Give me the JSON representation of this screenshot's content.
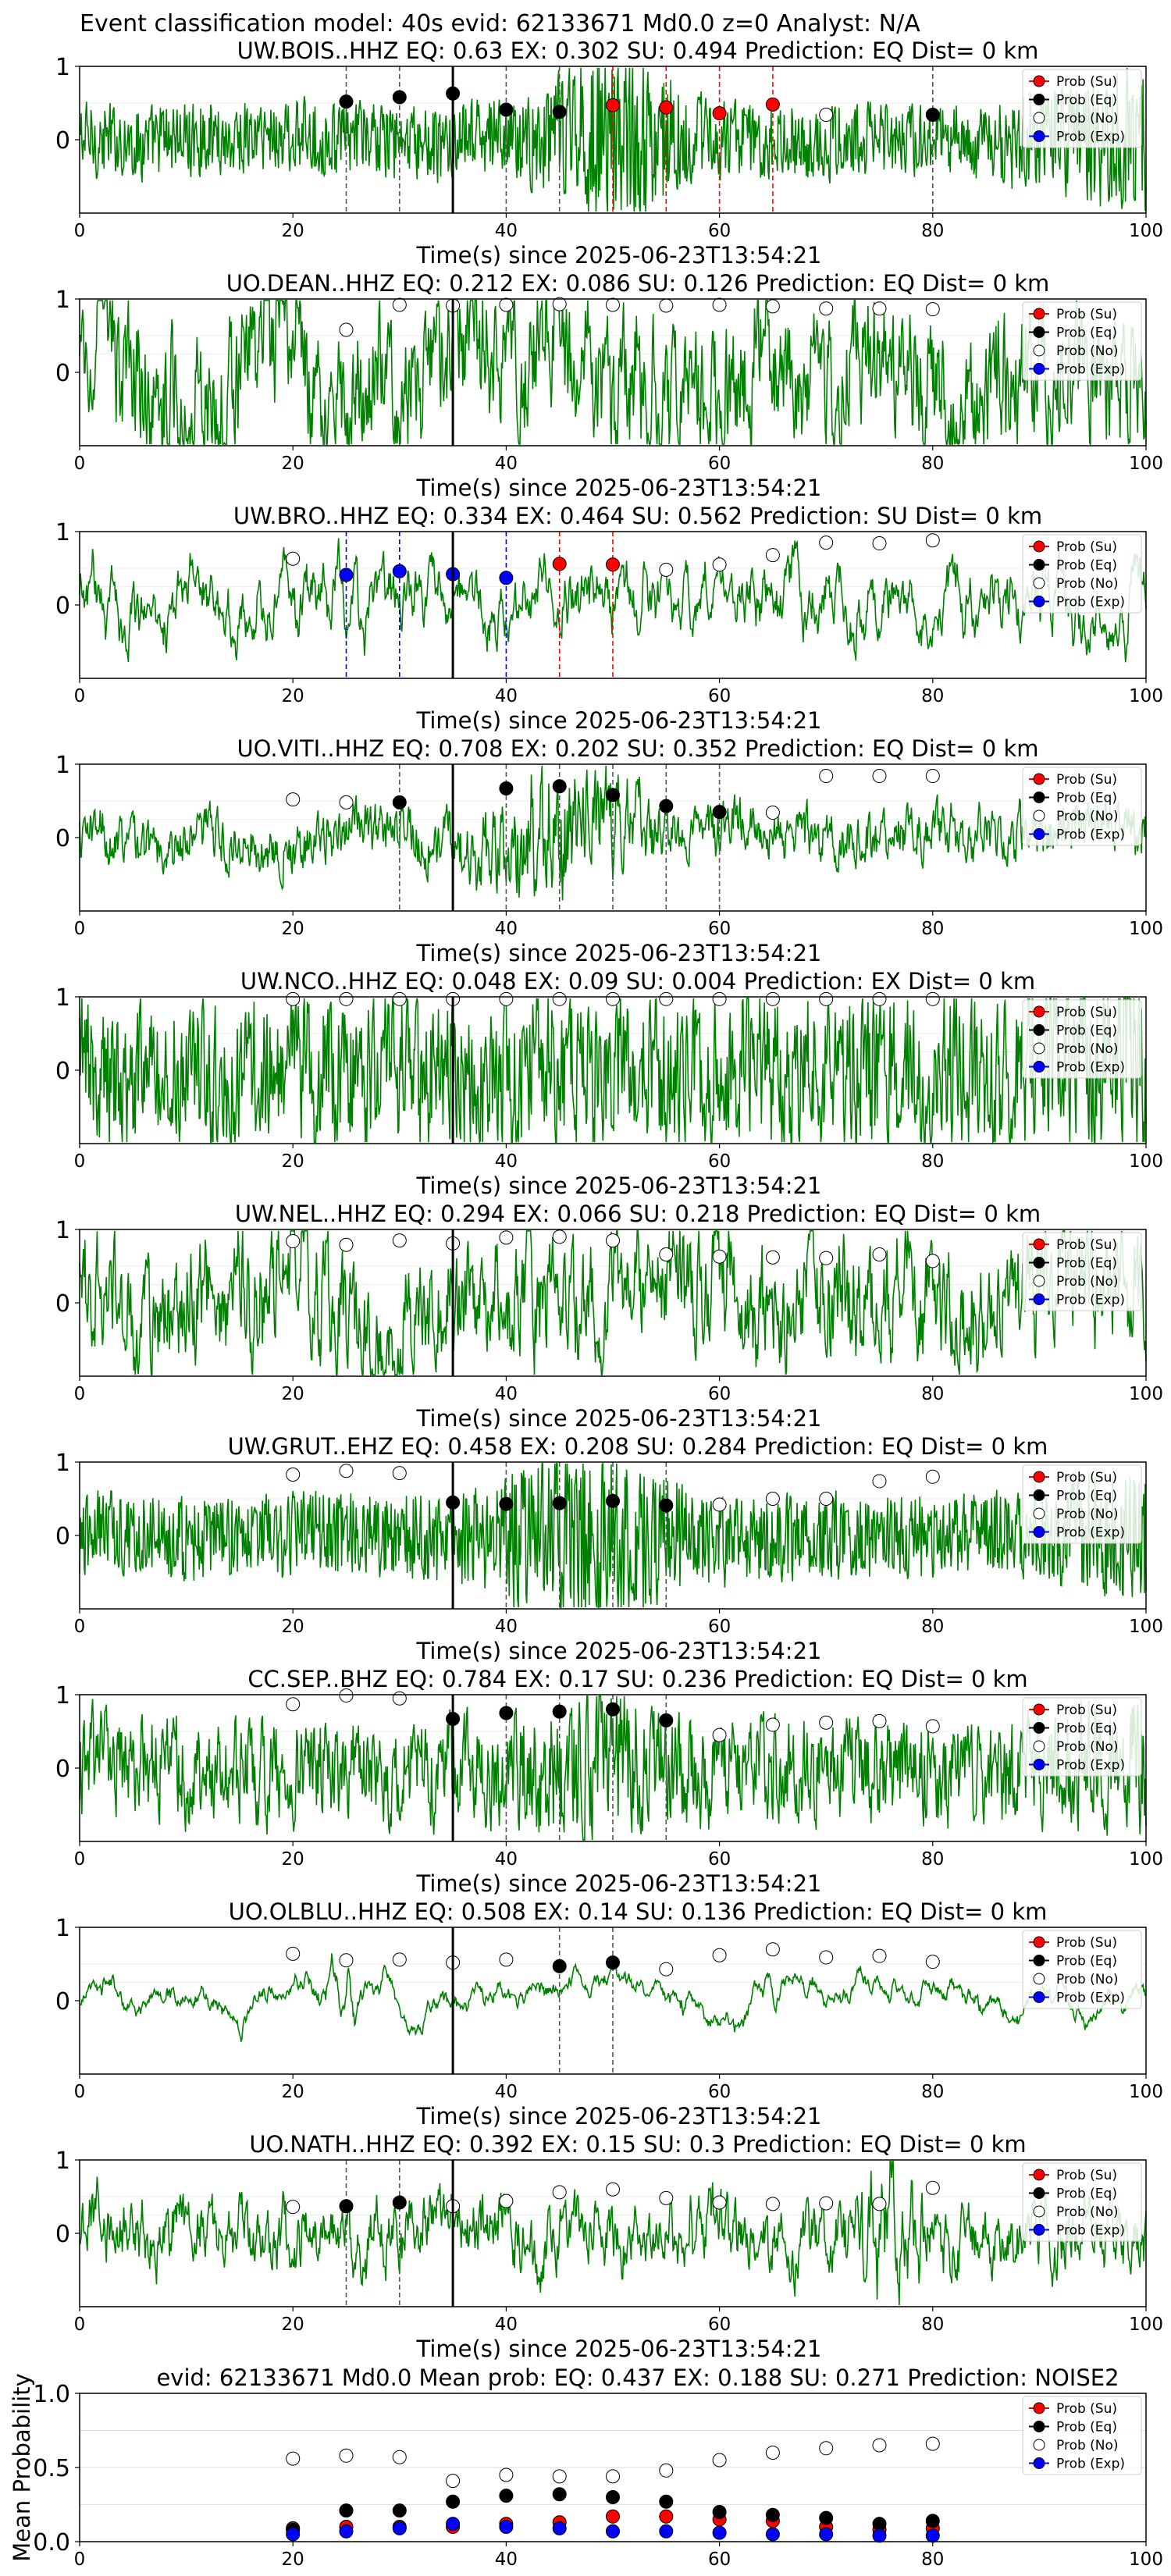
{
  "figure": {
    "suptitle": "Event classification model: 40s evid: 62133671 Md0.0 z=0 Analyst: N/A",
    "xlabel": "Time(s) since 2025-06-23T13:54:21",
    "legend": [
      "Prob (Su)",
      "Prob (Eq)",
      "Prob (No)",
      "Prob (Exp)"
    ],
    "colors": {
      "trace": "#008000",
      "su": "#ff0000",
      "eq": "#000000",
      "no": "#ffffff",
      "exp": "#0000ff",
      "su_line": "#ff0000",
      "eq_line": "#555555",
      "exp_line": "#0000ff",
      "pick_line": "#000000",
      "grid": "#dddddd"
    }
  },
  "chart_data": [
    {
      "type": "line",
      "station": "UW.BOIS..HHZ",
      "title": "UW.BOIS..HHZ   EQ: 0.63  EX: 0.302  SU: 0.494   Prediction: EQ    Dist= 0 km",
      "xlim": [
        0,
        100
      ],
      "ylim": [
        -1,
        1
      ],
      "xticks": [
        "0",
        "20",
        "40",
        "60",
        "80",
        "100"
      ],
      "yticks": [
        "1",
        "0"
      ],
      "pick_time": 35,
      "trace": {
        "amplitude": 0.22,
        "smoothness": 0.15,
        "burst_center": 50,
        "burst_amp": 0.35,
        "burst_width": 6,
        "late_amp": 0.25
      },
      "prob_su": {
        "x": [
          50,
          55,
          60,
          65
        ],
        "y": [
          0.47,
          0.44,
          0.36,
          0.48
        ]
      },
      "prob_eq": {
        "x": [
          25,
          30,
          35,
          40,
          45,
          80
        ],
        "y": [
          0.52,
          0.58,
          0.63,
          0.41,
          0.38,
          0.34
        ]
      },
      "prob_no": {
        "x": [
          70
        ],
        "y": [
          0.34
        ]
      },
      "prob_exp": {
        "x": [],
        "y": []
      }
    },
    {
      "type": "line",
      "station": "UO.DEAN..HHZ",
      "title": "UO.DEAN..HHZ   EQ: 0.212  EX: 0.086  SU: 0.126   Prediction: EQ    Dist= 0 km",
      "xlim": [
        0,
        100
      ],
      "ylim": [
        -1,
        1
      ],
      "xticks": [
        "0",
        "20",
        "40",
        "60",
        "80",
        "100"
      ],
      "yticks": [
        "1",
        "0"
      ],
      "pick_time": 35,
      "trace": {
        "amplitude": 0.62,
        "smoothness": 0.55,
        "burst_center": 50,
        "burst_amp": 0,
        "burst_width": 5,
        "late_amp": 0
      },
      "prob_su": {
        "x": [],
        "y": []
      },
      "prob_eq": {
        "x": [],
        "y": []
      },
      "prob_no": {
        "x": [
          25,
          30,
          35,
          40,
          45,
          50,
          55,
          60,
          65,
          70,
          75,
          80
        ],
        "y": [
          0.58,
          0.92,
          0.91,
          0.92,
          0.93,
          0.92,
          0.91,
          0.92,
          0.9,
          0.87,
          0.87,
          0.86
        ]
      },
      "prob_exp": {
        "x": [],
        "y": []
      }
    },
    {
      "type": "line",
      "station": "UW.BRO..HHZ",
      "title": "UW.BRO..HHZ   EQ: 0.334  EX: 0.464  SU: 0.562   Prediction: SU    Dist= 0 km",
      "xlim": [
        0,
        100
      ],
      "ylim": [
        -1,
        1
      ],
      "xticks": [
        "0",
        "20",
        "40",
        "60",
        "80",
        "100"
      ],
      "yticks": [
        "1",
        "0"
      ],
      "pick_time": 35,
      "trace": {
        "amplitude": 0.55,
        "smoothness": 0.82,
        "burst_center": 50,
        "burst_amp": 0,
        "burst_width": 5,
        "late_amp": 0
      },
      "prob_su": {
        "x": [
          45,
          50
        ],
        "y": [
          0.56,
          0.55
        ]
      },
      "prob_eq": {
        "x": [],
        "y": []
      },
      "prob_no": {
        "x": [
          20,
          55,
          60,
          65,
          70,
          75,
          80
        ],
        "y": [
          0.63,
          0.48,
          0.55,
          0.68,
          0.85,
          0.84,
          0.88
        ]
      },
      "prob_exp": {
        "x": [
          25,
          30,
          35,
          40
        ],
        "y": [
          0.41,
          0.46,
          0.42,
          0.37
        ]
      }
    },
    {
      "type": "line",
      "station": "UO.VITI..HHZ",
      "title": "UO.VITI..HHZ   EQ: 0.708  EX: 0.202  SU: 0.352   Prediction: EQ    Dist= 0 km",
      "xlim": [
        0,
        100
      ],
      "ylim": [
        -1,
        1
      ],
      "xticks": [
        "0",
        "20",
        "40",
        "60",
        "80",
        "100"
      ],
      "yticks": [
        "1",
        "0"
      ],
      "pick_time": 35,
      "trace": {
        "amplitude": 0.24,
        "smoothness": 0.55,
        "burst_center": 45,
        "burst_amp": 0.4,
        "burst_width": 6,
        "late_amp": 0
      },
      "prob_su": {
        "x": [],
        "y": []
      },
      "prob_eq": {
        "x": [
          30,
          40,
          45,
          50,
          55,
          60
        ],
        "y": [
          0.48,
          0.67,
          0.7,
          0.58,
          0.43,
          0.35
        ]
      },
      "prob_no": {
        "x": [
          20,
          25,
          65,
          70,
          75,
          80
        ],
        "y": [
          0.52,
          0.48,
          0.34,
          0.84,
          0.84,
          0.84
        ]
      },
      "prob_exp": {
        "x": [],
        "y": []
      }
    },
    {
      "type": "line",
      "station": "UW.NCO..HHZ",
      "title": "UW.NCO..HHZ   EQ: 0.048  EX: 0.09  SU: 0.004   Prediction: EX    Dist= 0 km",
      "xlim": [
        0,
        100
      ],
      "ylim": [
        -1,
        1
      ],
      "xticks": [
        "0",
        "20",
        "40",
        "60",
        "80",
        "100"
      ],
      "yticks": [
        "1",
        "0"
      ],
      "pick_time": 35,
      "trace": {
        "amplitude": 0.55,
        "smoothness": 0.35,
        "burst_center": 50,
        "burst_amp": 0,
        "burst_width": 5,
        "late_amp": 0.2
      },
      "prob_su": {
        "x": [],
        "y": []
      },
      "prob_eq": {
        "x": [],
        "y": []
      },
      "prob_no": {
        "x": [
          20,
          25,
          30,
          35,
          40,
          45,
          50,
          55,
          60,
          65,
          70,
          75,
          80
        ],
        "y": [
          0.97,
          0.97,
          0.97,
          0.97,
          0.97,
          0.97,
          0.97,
          0.97,
          0.97,
          0.97,
          0.97,
          0.97,
          0.97
        ]
      },
      "prob_exp": {
        "x": [],
        "y": []
      }
    },
    {
      "type": "line",
      "station": "UW.NEL..HHZ",
      "title": "UW.NEL..HHZ   EQ: 0.294  EX: 0.066  SU: 0.218   Prediction: EQ    Dist= 0 km",
      "xlim": [
        0,
        100
      ],
      "ylim": [
        -1,
        1
      ],
      "xticks": [
        "0",
        "20",
        "40",
        "60",
        "80",
        "100"
      ],
      "yticks": [
        "1",
        "0"
      ],
      "pick_time": 35,
      "trace": {
        "amplitude": 0.58,
        "smoothness": 0.6,
        "burst_center": 50,
        "burst_amp": 0,
        "burst_width": 5,
        "late_amp": 0
      },
      "prob_su": {
        "x": [],
        "y": []
      },
      "prob_eq": {
        "x": [],
        "y": []
      },
      "prob_no": {
        "x": [
          20,
          25,
          30,
          35,
          40,
          45,
          50,
          55,
          60,
          65,
          70,
          75,
          80
        ],
        "y": [
          0.84,
          0.79,
          0.85,
          0.81,
          0.89,
          0.9,
          0.85,
          0.66,
          0.63,
          0.62,
          0.61,
          0.66,
          0.57
        ]
      },
      "prob_exp": {
        "x": [],
        "y": []
      }
    },
    {
      "type": "line",
      "station": "UW.GRUT..EHZ",
      "title": "UW.GRUT..EHZ   EQ: 0.458  EX: 0.208  SU: 0.284   Prediction: EQ    Dist= 0 km",
      "xlim": [
        0,
        100
      ],
      "ylim": [
        -1,
        1
      ],
      "xticks": [
        "0",
        "20",
        "40",
        "60",
        "80",
        "100"
      ],
      "yticks": [
        "1",
        "0"
      ],
      "pick_time": 35,
      "trace": {
        "amplitude": 0.24,
        "smoothness": 0.1,
        "burst_center": 47,
        "burst_amp": 0.3,
        "burst_width": 8,
        "late_amp": 0.15
      },
      "prob_su": {
        "x": [],
        "y": []
      },
      "prob_eq": {
        "x": [
          35,
          40,
          45,
          50,
          55
        ],
        "y": [
          0.45,
          0.43,
          0.44,
          0.47,
          0.41
        ]
      },
      "prob_no": {
        "x": [
          20,
          25,
          30,
          60,
          65,
          70,
          75,
          80
        ],
        "y": [
          0.83,
          0.88,
          0.85,
          0.42,
          0.5,
          0.5,
          0.74,
          0.8
        ]
      },
      "prob_exp": {
        "x": [],
        "y": []
      }
    },
    {
      "type": "line",
      "station": "CC.SEP..BHZ",
      "title": "CC.SEP..BHZ   EQ: 0.784  EX: 0.17  SU: 0.236   Prediction: EQ    Dist= 0 km",
      "xlim": [
        0,
        100
      ],
      "ylim": [
        -1,
        1
      ],
      "xticks": [
        "0",
        "20",
        "40",
        "60",
        "80",
        "100"
      ],
      "yticks": [
        "1",
        "0"
      ],
      "pick_time": 35,
      "trace": {
        "amplitude": 0.4,
        "smoothness": 0.45,
        "burst_center": 48,
        "burst_amp": 0.3,
        "burst_width": 6,
        "late_amp": 0.15
      },
      "prob_su": {
        "x": [],
        "y": []
      },
      "prob_eq": {
        "x": [
          35,
          40,
          45,
          50,
          55
        ],
        "y": [
          0.67,
          0.75,
          0.77,
          0.8,
          0.65
        ]
      },
      "prob_no": {
        "x": [
          20,
          25,
          30,
          60,
          65,
          70,
          75,
          80
        ],
        "y": [
          0.87,
          0.99,
          0.95,
          0.45,
          0.59,
          0.62,
          0.64,
          0.57
        ]
      },
      "prob_exp": {
        "x": [],
        "y": []
      }
    },
    {
      "type": "line",
      "station": "UO.OLBLU..HHZ",
      "title": "UO.OLBLU..HHZ   EQ: 0.508  EX: 0.14  SU: 0.136   Prediction: EQ    Dist= 0 km",
      "xlim": [
        0,
        100
      ],
      "ylim": [
        -1,
        1
      ],
      "xticks": [
        "0",
        "20",
        "40",
        "60",
        "80",
        "100"
      ],
      "yticks": [
        "1",
        "0"
      ],
      "pick_time": 35,
      "trace": {
        "amplitude": 0.42,
        "smoothness": 0.96,
        "burst_center": 25,
        "burst_amp": 0.4,
        "burst_width": 3,
        "late_amp": 0
      },
      "prob_su": {
        "x": [],
        "y": []
      },
      "prob_eq": {
        "x": [
          45,
          50
        ],
        "y": [
          0.47,
          0.52
        ]
      },
      "prob_no": {
        "x": [
          20,
          25,
          30,
          35,
          40,
          55,
          60,
          65,
          70,
          75,
          80
        ],
        "y": [
          0.64,
          0.55,
          0.56,
          0.52,
          0.56,
          0.43,
          0.62,
          0.7,
          0.59,
          0.61,
          0.53
        ]
      },
      "prob_exp": {
        "x": [],
        "y": []
      }
    },
    {
      "type": "line",
      "station": "UO.NATH..HHZ",
      "title": "UO.NATH..HHZ   EQ: 0.392  EX: 0.15  SU: 0.3   Prediction: EQ    Dist= 0 km",
      "xlim": [
        0,
        100
      ],
      "ylim": [
        -1,
        1
      ],
      "xticks": [
        "0",
        "20",
        "40",
        "60",
        "80",
        "100"
      ],
      "yticks": [
        "1",
        "0"
      ],
      "pick_time": 35,
      "trace": {
        "amplitude": 0.4,
        "smoothness": 0.7,
        "burst_center": 76,
        "burst_amp": 0.45,
        "burst_width": 3,
        "late_amp": 0
      },
      "prob_su": {
        "x": [],
        "y": []
      },
      "prob_eq": {
        "x": [
          25,
          30
        ],
        "y": [
          0.37,
          0.42
        ]
      },
      "prob_no": {
        "x": [
          20,
          35,
          40,
          45,
          50,
          55,
          60,
          65,
          70,
          75,
          80
        ],
        "y": [
          0.36,
          0.37,
          0.44,
          0.56,
          0.6,
          0.48,
          0.42,
          0.4,
          0.41,
          0.4,
          0.62
        ]
      },
      "prob_exp": {
        "x": [],
        "y": []
      }
    },
    {
      "type": "scatter",
      "station": "mean",
      "title": "evid: 62133671  Md0.0   Mean prob:   EQ: 0.437  EX: 0.188  SU: 0.271   Prediction: NOISE2",
      "ylabel": "Mean Probability",
      "xlim": [
        0,
        100
      ],
      "ylim": [
        0,
        1
      ],
      "xticks": [
        "0",
        "20",
        "40",
        "60",
        "80",
        "100"
      ],
      "yticks": [
        "1.0",
        "0.5",
        "0.0"
      ],
      "prob_su": {
        "x": [
          20,
          25,
          30,
          35,
          40,
          45,
          50,
          55,
          60,
          65,
          70,
          75,
          80
        ],
        "y": [
          0.09,
          0.1,
          0.1,
          0.1,
          0.12,
          0.13,
          0.17,
          0.17,
          0.15,
          0.14,
          0.1,
          0.08,
          0.09
        ]
      },
      "prob_eq": {
        "x": [
          20,
          25,
          30,
          35,
          40,
          45,
          50,
          55,
          60,
          65,
          70,
          75,
          80
        ],
        "y": [
          0.08,
          0.21,
          0.21,
          0.27,
          0.31,
          0.32,
          0.3,
          0.27,
          0.2,
          0.18,
          0.16,
          0.12,
          0.14
        ]
      },
      "prob_no": {
        "x": [
          20,
          25,
          30,
          35,
          40,
          45,
          50,
          55,
          60,
          65,
          70,
          75,
          80
        ],
        "y": [
          0.56,
          0.58,
          0.57,
          0.41,
          0.45,
          0.44,
          0.44,
          0.48,
          0.55,
          0.6,
          0.63,
          0.65,
          0.66
        ]
      },
      "prob_exp": {
        "x": [
          20,
          25,
          30,
          35,
          40,
          45,
          50,
          55,
          60,
          65,
          70,
          75,
          80
        ],
        "y": [
          0.05,
          0.07,
          0.09,
          0.12,
          0.1,
          0.09,
          0.07,
          0.07,
          0.06,
          0.05,
          0.05,
          0.04,
          0.04
        ]
      }
    }
  ]
}
